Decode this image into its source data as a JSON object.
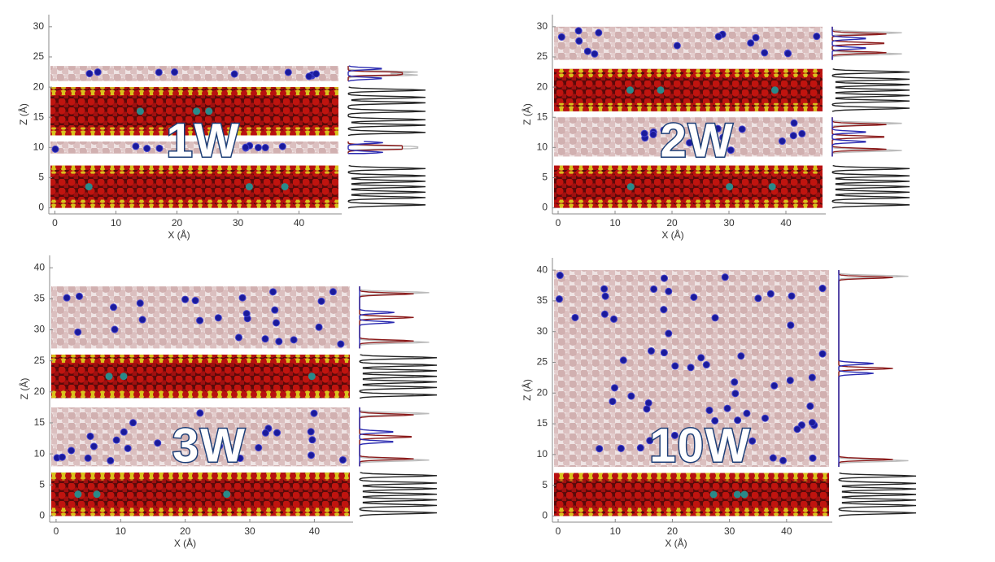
{
  "chart_data": [
    {
      "type": "snapshot",
      "annotation": "1W",
      "xlabel": "X (Å)",
      "ylabel": "Z (Å)",
      "xlim": [
        -1,
        47
      ],
      "ylim": [
        -1,
        32
      ],
      "xticks": [
        0,
        10,
        20,
        30,
        40
      ],
      "yticks": [
        0,
        5,
        10,
        15,
        20,
        25,
        30
      ]
    },
    {
      "type": "snapshot",
      "annotation": "2W",
      "xlabel": "X (Å)",
      "ylabel": "Z (Å)",
      "xlim": [
        -1,
        47
      ],
      "ylim": [
        -1,
        32
      ],
      "xticks": [
        0,
        10,
        20,
        30,
        40
      ],
      "yticks": [
        0,
        5,
        10,
        15,
        20,
        25,
        30
      ]
    },
    {
      "type": "snapshot",
      "annotation": "3W",
      "xlabel": "X (Å)",
      "ylabel": "Z (Å)",
      "xlim": [
        -1,
        46
      ],
      "ylim": [
        -1,
        42
      ],
      "xticks": [
        0,
        10,
        20,
        30,
        40
      ],
      "yticks": [
        0,
        5,
        10,
        15,
        20,
        25,
        30,
        35,
        40
      ]
    },
    {
      "type": "snapshot",
      "annotation": "10W",
      "xlabel": "X (Å)",
      "ylabel": "Z (Å)",
      "xlim": [
        -1,
        48
      ],
      "ylim": [
        -1,
        42
      ],
      "xticks": [
        0,
        10,
        20,
        30,
        40
      ],
      "yticks": [
        0,
        5,
        10,
        15,
        20,
        25,
        30,
        35,
        40
      ]
    }
  ]
}
